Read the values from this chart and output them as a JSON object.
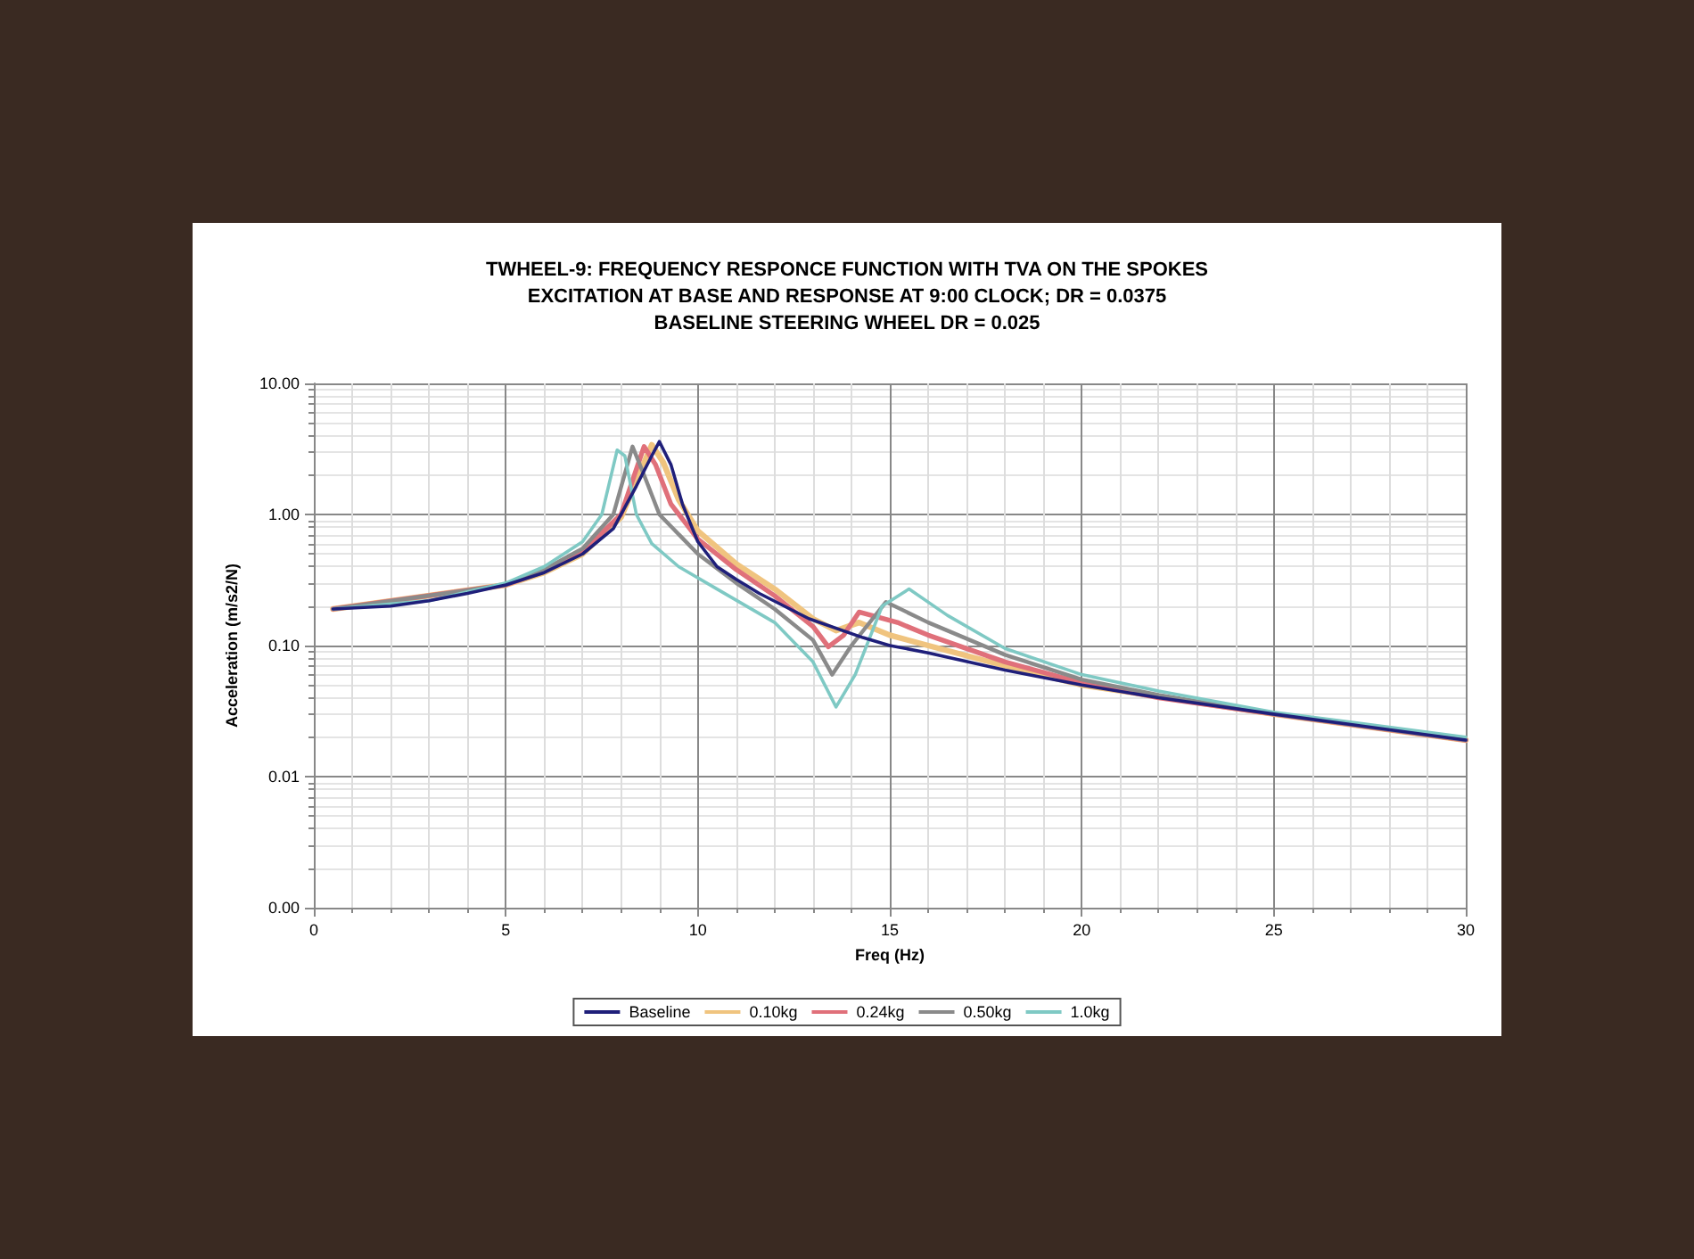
{
  "chart_data": {
    "type": "line",
    "title": "TWHEEL-9: FREQUENCY RESPONCE FUNCTION WITH TVA ON THE SPOKES\nEXCITATION AT BASE AND RESPONSE AT 9:00 CLOCK; DR = 0.0375\nBASELINE STEERING WHEEL DR = 0.025",
    "xlabel": "Freq (Hz)",
    "ylabel": "Acceleration (m/s2/N)",
    "xlim": [
      0,
      30
    ],
    "xticks": [
      0,
      5,
      10,
      15,
      20,
      25,
      30
    ],
    "ylim": [
      0.001,
      10
    ],
    "yticks": [
      {
        "value": 0.001,
        "label": "0.00"
      },
      {
        "value": 0.01,
        "label": "0.01"
      },
      {
        "value": 0.1,
        "label": "0.10"
      },
      {
        "value": 1,
        "label": "1.00"
      },
      {
        "value": 10,
        "label": "10.00"
      }
    ],
    "log": "y",
    "grid": true,
    "legend": "bottom",
    "marker": "none",
    "line_style": "solid",
    "series": [
      {
        "name": "Baseline",
        "color": "#1f1f7a",
        "x": [
          0.5,
          2,
          3,
          4,
          5,
          6,
          7,
          7.8,
          8.4,
          8.8,
          9.0,
          9.3,
          9.6,
          10,
          10.5,
          11,
          11.6,
          12.9,
          14.3,
          15,
          16,
          18,
          20,
          22,
          25,
          27,
          30
        ],
        "values": [
          0.19,
          0.2,
          0.22,
          0.25,
          0.29,
          0.36,
          0.5,
          0.78,
          1.65,
          2.8,
          3.6,
          2.4,
          1.2,
          0.62,
          0.4,
          0.32,
          0.25,
          0.16,
          0.115,
          0.1,
          0.088,
          0.065,
          0.05,
          0.04,
          0.03,
          0.025,
          0.019
        ]
      },
      {
        "name": "0.10kg",
        "color": "#f0c47f",
        "x": [
          0.5,
          5,
          6,
          7,
          8,
          8.8,
          9.1,
          9.5,
          10,
          11,
          12,
          13,
          13.6,
          14.2,
          15,
          16,
          18,
          20,
          25,
          30
        ],
        "values": [
          0.19,
          0.29,
          0.36,
          0.5,
          0.95,
          3.4,
          2.5,
          1.3,
          0.75,
          0.42,
          0.27,
          0.16,
          0.13,
          0.15,
          0.12,
          0.1,
          0.07,
          0.05,
          0.03,
          0.019
        ]
      },
      {
        "name": "0.24kg",
        "color": "#e0707a",
        "x": [
          0.5,
          5,
          6,
          7,
          8,
          8.6,
          8.9,
          9.3,
          10,
          11,
          12,
          13,
          13.4,
          13.8,
          14.2,
          15.2,
          16,
          18,
          20,
          22,
          25,
          30
        ],
        "values": [
          0.19,
          0.29,
          0.37,
          0.52,
          1.0,
          3.3,
          2.4,
          1.2,
          0.65,
          0.38,
          0.24,
          0.14,
          0.098,
          0.12,
          0.18,
          0.15,
          0.12,
          0.075,
          0.052,
          0.04,
          0.03,
          0.019
        ]
      },
      {
        "name": "0.50kg",
        "color": "#8a8a8a",
        "x": [
          0.5,
          5,
          6,
          7,
          7.8,
          8.3,
          8.6,
          9,
          10,
          11,
          12,
          13,
          13.5,
          14,
          14.9,
          16,
          18,
          20,
          22,
          25,
          30
        ],
        "values": [
          0.19,
          0.29,
          0.38,
          0.55,
          1.0,
          3.3,
          2.0,
          1.0,
          0.5,
          0.3,
          0.19,
          0.11,
          0.06,
          0.1,
          0.215,
          0.15,
          0.085,
          0.055,
          0.042,
          0.03,
          0.019
        ]
      },
      {
        "name": "1.0kg",
        "color": "#7fc9c4",
        "x": [
          0.5,
          3,
          5,
          6,
          7,
          7.5,
          7.9,
          8.1,
          8.4,
          8.8,
          9.5,
          10.5,
          12,
          13,
          13.6,
          14.1,
          14.8,
          15.5,
          16.5,
          18,
          20,
          22,
          25,
          30
        ],
        "values": [
          0.19,
          0.22,
          0.3,
          0.4,
          0.62,
          1.0,
          3.1,
          2.8,
          1.0,
          0.6,
          0.4,
          0.27,
          0.15,
          0.075,
          0.034,
          0.06,
          0.2,
          0.27,
          0.17,
          0.095,
          0.06,
          0.045,
          0.031,
          0.02
        ]
      }
    ]
  }
}
